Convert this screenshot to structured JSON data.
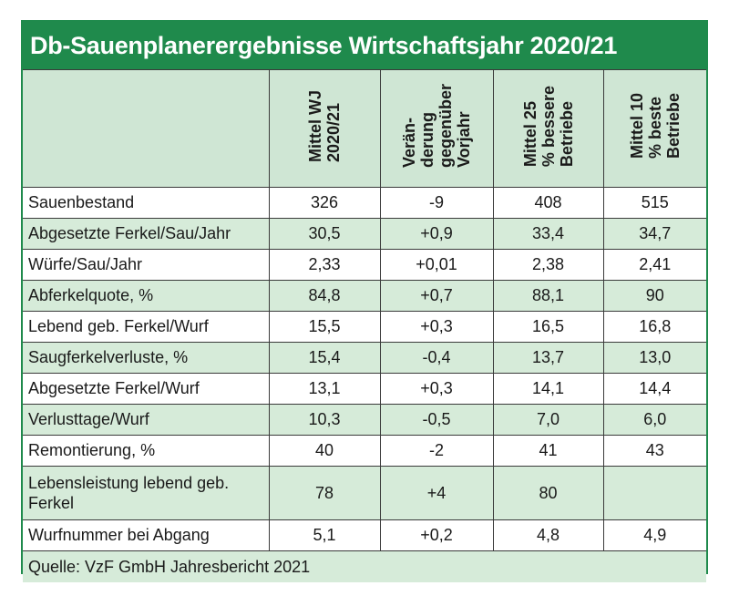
{
  "title": "Db-Sauenplanerergebnisse Wirtschaftsjahr 2020/21",
  "headers": [
    "",
    "Mittel WJ 2020/21",
    "Verän-derung gegenüber Vorjahr",
    "Mittel 25 % bessere Betriebe",
    "Mittel 10 % beste Betriebe"
  ],
  "header_lines": [
    [],
    [
      "Mittel WJ",
      "2020/21"
    ],
    [
      "Verän-",
      "derung",
      "gegenüber",
      "Vorjahr"
    ],
    [
      "Mittel 25",
      "% bessere",
      "Betriebe"
    ],
    [
      "Mittel 10",
      "% beste",
      "Betriebe"
    ]
  ],
  "rows": [
    {
      "label": "Sauenbestand",
      "values": [
        "326",
        "-9",
        "408",
        "515"
      ]
    },
    {
      "label": "Abgesetzte Ferkel/Sau/Jahr",
      "values": [
        "30,5",
        "+0,9",
        "33,4",
        "34,7"
      ]
    },
    {
      "label": "Würfe/Sau/Jahr",
      "values": [
        "2,33",
        "+0,01",
        "2,38",
        "2,41"
      ]
    },
    {
      "label": "Abferkelquote, %",
      "values": [
        "84,8",
        "+0,7",
        "88,1",
        "90"
      ]
    },
    {
      "label": "Lebend geb. Ferkel/Wurf",
      "values": [
        "15,5",
        "+0,3",
        "16,5",
        "16,8"
      ]
    },
    {
      "label": "Saugferkelverluste, %",
      "values": [
        "15,4",
        "-0,4",
        "13,7",
        "13,0"
      ]
    },
    {
      "label": "Abgesetzte Ferkel/Wurf",
      "values": [
        "13,1",
        "+0,3",
        "14,1",
        "14,4"
      ]
    },
    {
      "label": "Verlusttage/Wurf",
      "values": [
        "10,3",
        "-0,5",
        "7,0",
        "6,0"
      ]
    },
    {
      "label": "Remontierung, %",
      "values": [
        "40",
        "-2",
        "41",
        "43"
      ]
    },
    {
      "label": "Lebensleistung lebend geb. Ferkel",
      "values": [
        "78",
        "+4",
        "80",
        ""
      ]
    },
    {
      "label": "Wurfnummer bei Abgang",
      "values": [
        "5,1",
        "+0,2",
        "4,8",
        "4,9"
      ]
    }
  ],
  "source": "Quelle: VzF GmbH Jahresbericht 2021",
  "colors": {
    "accent": "#1f8a4c",
    "row_tint": "#d6ebd9",
    "header_tint": "#cfe6d4"
  }
}
